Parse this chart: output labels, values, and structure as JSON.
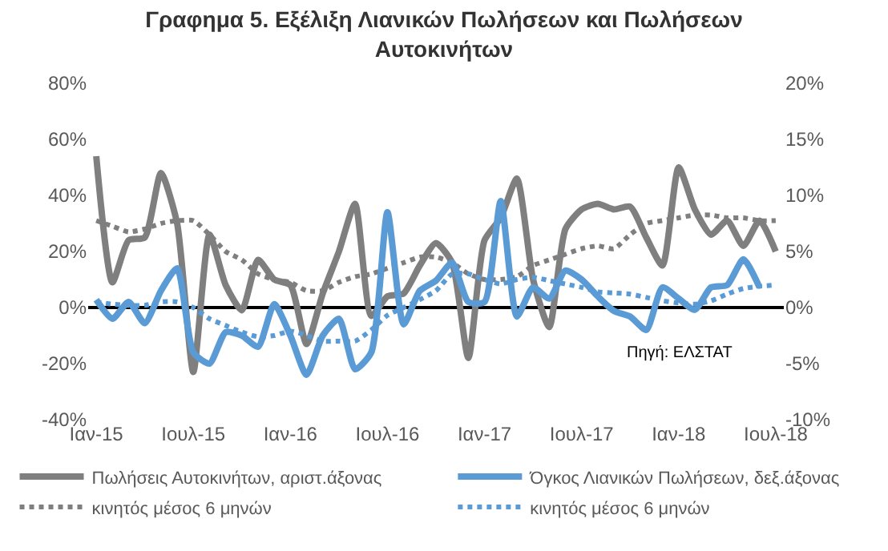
{
  "chart_data": {
    "type": "line",
    "title": "Γραφημα 5. Εξέλιξη Λιανικών Πωλήσεων και Πωλήσεων Αυτοκινήτων",
    "categories": [
      "Ιαν-15",
      null,
      null,
      null,
      null,
      null,
      "Ιουλ-15",
      null,
      null,
      null,
      null,
      null,
      "Ιαν-16",
      null,
      null,
      null,
      null,
      null,
      "Ιουλ-16",
      null,
      null,
      null,
      null,
      null,
      "Ιαν-17",
      null,
      null,
      null,
      null,
      null,
      "Ιουλ-17",
      null,
      null,
      null,
      null,
      null,
      "Ιαν-18",
      null,
      null,
      null,
      null,
      null,
      "Ιουλ-18"
    ],
    "series": [
      {
        "name": "Πωλήσεις Αυτοκινήτων, αριστ.άξονας",
        "color": "#7f7f7f",
        "line_style": "solid",
        "values": [
          54,
          9,
          24,
          25,
          48,
          30,
          -23,
          26,
          8,
          -1,
          17,
          10,
          8,
          -13,
          5,
          20,
          37,
          -3,
          4,
          5,
          15,
          23,
          16,
          -18,
          24,
          32,
          46,
          10,
          -7,
          28,
          35,
          37,
          35,
          36,
          25,
          15,
          50,
          35,
          26,
          31,
          22,
          31,
          20
        ]
      },
      {
        "name": "κινητός μέσος 6 μηνών",
        "color": "#7f7f7f",
        "line_style": "dotted",
        "values": [
          31,
          29,
          27,
          28,
          30,
          31,
          31,
          26,
          20,
          17,
          12,
          10,
          9,
          6,
          6,
          9,
          11,
          12,
          14,
          16,
          18,
          18,
          16,
          12,
          10,
          10,
          11,
          15,
          17,
          19,
          21,
          22,
          21,
          26,
          30,
          31,
          32,
          33,
          33,
          32,
          32,
          31,
          31
        ]
      },
      {
        "name": "Όγκος Λιανικών Πωλήσεων, δεξ.άξονας",
        "color": "#5b9bd5",
        "line_style": "solid",
        "axis": "y2",
        "values": [
          0.7,
          -1.0,
          0.5,
          -1.4,
          1.5,
          3.5,
          -4,
          -5,
          -2.2,
          -2.5,
          -3.5,
          0.3,
          -2.5,
          -6,
          -2.5,
          -1,
          -5.5,
          -4,
          8.5,
          -1.5,
          1.5,
          2.4,
          4,
          0.5,
          0.5,
          9.5,
          -0.8,
          1.8,
          0.8,
          3.3,
          2.5,
          1.0,
          -0.3,
          -0.8,
          -2,
          1.8,
          0.8,
          -0.2,
          1.8,
          2,
          4.3,
          1.8,
          null
        ]
      },
      {
        "name": "κινητός μέσος 6 μηνών",
        "color": "#5b9bd5",
        "line_style": "dotted",
        "axis": "y2",
        "values": [
          0.5,
          0.3,
          0.2,
          0.2,
          0.5,
          0.5,
          0,
          -1,
          -1.6,
          -2.2,
          -2.6,
          -2.5,
          -2.1,
          -2.5,
          -3,
          -3,
          -3,
          -2,
          -0.7,
          0,
          0.7,
          1.5,
          3,
          3,
          2.5,
          2.1,
          2.5,
          2.7,
          2.4,
          2.1,
          1.8,
          1.4,
          1.3,
          1.2,
          0.9,
          0.6,
          0.4,
          0.3,
          0.6,
          1.2,
          1.7,
          1.9,
          2.0
        ]
      }
    ],
    "ylim": [
      -40,
      80
    ],
    "yticks": [
      {
        "value": -40,
        "label": "-40%"
      },
      {
        "value": -20,
        "label": "-20%"
      },
      {
        "value": 0,
        "label": "0%"
      },
      {
        "value": 20,
        "label": "20%"
      },
      {
        "value": 40,
        "label": "40%"
      },
      {
        "value": 60,
        "label": "60%"
      },
      {
        "value": 80,
        "label": "80%"
      }
    ],
    "y2lim": [
      -10,
      20
    ],
    "y2ticks": [
      {
        "value": -10,
        "label": "-10%"
      },
      {
        "value": -5,
        "label": "-5%"
      },
      {
        "value": 0,
        "label": "0%"
      },
      {
        "value": 5,
        "label": "5%"
      },
      {
        "value": 10,
        "label": "10%"
      },
      {
        "value": 15,
        "label": "15%"
      },
      {
        "value": 20,
        "label": "20%"
      }
    ],
    "ref_lines": [
      {
        "axis": "y",
        "value": 0,
        "color": "#000000"
      }
    ],
    "annotations": [
      "Πηγή: ΕΛΣΤΑΤ"
    ],
    "legend": "bottom",
    "grid": false
  }
}
